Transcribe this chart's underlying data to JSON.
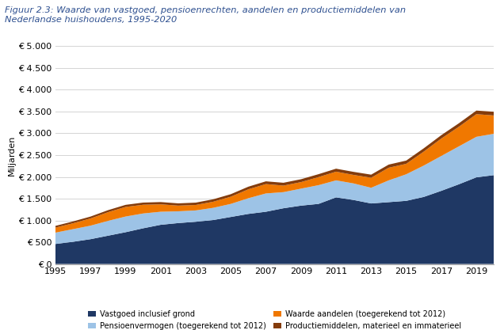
{
  "title": "Figuur 2.3: Waarde van vastgoed, pensioenrechten, aandelen en productiemiddelen van\nNederlandse huishoudens, 1995-2020",
  "ylabel": "Miljarden",
  "years": [
    1995,
    1996,
    1997,
    1998,
    1999,
    2000,
    2001,
    2002,
    2003,
    2004,
    2005,
    2006,
    2007,
    2008,
    2009,
    2010,
    2011,
    2012,
    2013,
    2014,
    2015,
    2016,
    2017,
    2018,
    2019,
    2020
  ],
  "vastgoed": [
    460,
    510,
    570,
    650,
    730,
    820,
    900,
    940,
    970,
    1010,
    1080,
    1150,
    1200,
    1280,
    1340,
    1380,
    1530,
    1470,
    1390,
    1420,
    1450,
    1540,
    1680,
    1830,
    1990,
    2040
  ],
  "pensioenvermogen": [
    260,
    290,
    310,
    340,
    360,
    340,
    300,
    270,
    260,
    280,
    300,
    360,
    420,
    370,
    390,
    430,
    390,
    380,
    360,
    500,
    610,
    720,
    800,
    870,
    930,
    950
  ],
  "waarde_aandelen": [
    115,
    135,
    165,
    200,
    220,
    200,
    170,
    130,
    125,
    140,
    165,
    205,
    215,
    150,
    150,
    185,
    200,
    195,
    230,
    290,
    240,
    320,
    400,
    450,
    520,
    420
  ],
  "productiemiddelen": [
    40,
    42,
    44,
    46,
    48,
    50,
    52,
    52,
    54,
    56,
    58,
    60,
    63,
    65,
    66,
    67,
    68,
    70,
    71,
    72,
    74,
    76,
    78,
    80,
    82,
    85
  ],
  "colors": {
    "vastgoed": "#1f3864",
    "pensioenvermogen": "#9dc3e6",
    "waarde_aandelen": "#f07800",
    "productiemiddelen": "#843c0c"
  },
  "legend_labels": [
    "Vastgoed inclusief grond",
    "Pensioenvermogen (toegerekend tot 2012)",
    "Waarde aandelen (toegerekend tot 2012)",
    "Productiemiddelen, materieel en immaterieel"
  ],
  "ylim": [
    0,
    5000
  ],
  "yticks": [
    0,
    500,
    1000,
    1500,
    2000,
    2500,
    3000,
    3500,
    4000,
    4500,
    5000
  ],
  "xticks": [
    1995,
    1997,
    1999,
    2001,
    2003,
    2005,
    2007,
    2009,
    2011,
    2013,
    2015,
    2017,
    2019
  ],
  "background_color": "#ffffff",
  "plot_bg_color": "#ffffff",
  "grid_color": "#d4d4d4"
}
